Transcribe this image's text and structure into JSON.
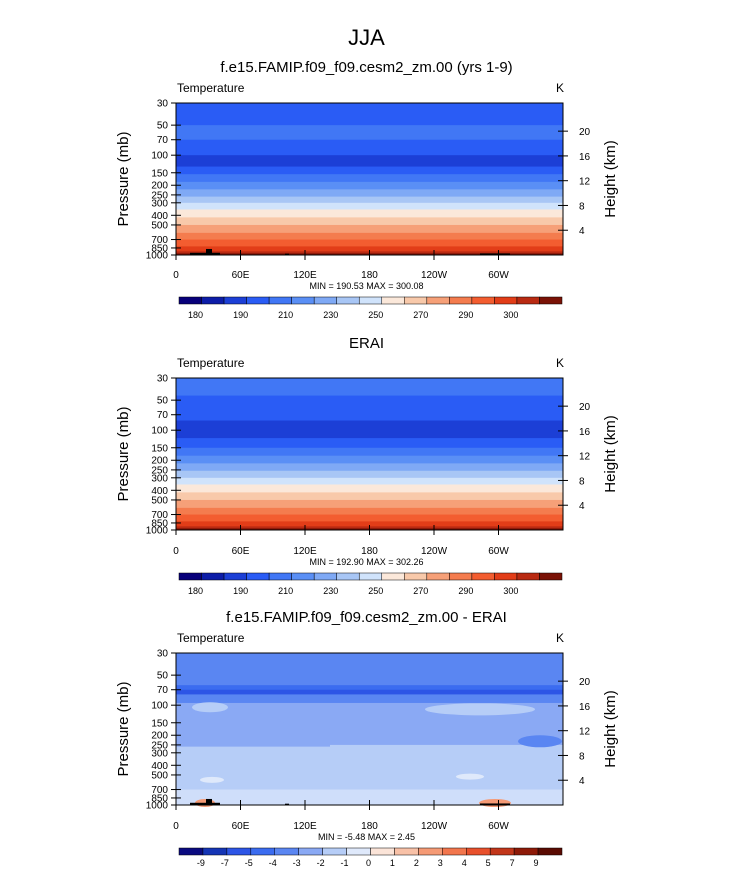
{
  "page_title": "JJA",
  "chart_data": [
    {
      "type": "heatmap",
      "title": "f.e15.FAMIP.f09_f09.cesm2_zm.00 (yrs 1-9)",
      "left_label": "Temperature",
      "units_label": "K",
      "xlabel": "",
      "ylabel": "Pressure (mb)",
      "y2label": "Height (km)",
      "x_ticks": [
        "0",
        "60E",
        "120E",
        "180",
        "120W",
        "60W"
      ],
      "y_ticks": [
        "30",
        "50",
        "70",
        "100",
        "150",
        "200",
        "250",
        "300",
        "400",
        "500",
        "700",
        "850",
        "1000"
      ],
      "y2_ticks": [
        "20",
        "16",
        "12",
        "8",
        "4"
      ],
      "minmax": "MIN = 190.53  MAX = 300.08",
      "colorbar_labels": [
        "180",
        "190",
        "210",
        "230",
        "250",
        "270",
        "290",
        "300"
      ],
      "bands": [
        {
          "p": 30,
          "level": 3
        },
        {
          "p": 50,
          "level": 4
        },
        {
          "p": 70,
          "level": 3
        },
        {
          "p": 100,
          "level": 2
        },
        {
          "p": 130,
          "level": 3
        },
        {
          "p": 155,
          "level": 4
        },
        {
          "p": 185,
          "level": 5
        },
        {
          "p": 220,
          "level": 6
        },
        {
          "p": 260,
          "level": 7
        },
        {
          "p": 300,
          "level": 8
        },
        {
          "p": 350,
          "level": 9
        },
        {
          "p": 420,
          "level": 10
        },
        {
          "p": 500,
          "level": 11
        },
        {
          "p": 600,
          "level": 12
        },
        {
          "p": 700,
          "level": 13
        },
        {
          "p": 820,
          "level": 14
        },
        {
          "p": 920,
          "level": 15
        }
      ],
      "topo_mask": true
    },
    {
      "type": "heatmap",
      "title": "ERAI",
      "left_label": "Temperature",
      "units_label": "K",
      "xlabel": "",
      "ylabel": "Pressure (mb)",
      "y2label": "Height (km)",
      "x_ticks": [
        "0",
        "60E",
        "120E",
        "180",
        "120W",
        "60W"
      ],
      "y_ticks": [
        "30",
        "50",
        "70",
        "100",
        "150",
        "200",
        "250",
        "300",
        "400",
        "500",
        "700",
        "850",
        "1000"
      ],
      "y2_ticks": [
        "20",
        "16",
        "12",
        "8",
        "4"
      ],
      "minmax": "MIN = 192.90  MAX = 302.26",
      "colorbar_labels": [
        "180",
        "190",
        "210",
        "230",
        "250",
        "270",
        "290",
        "300"
      ],
      "bands": [
        {
          "p": 30,
          "level": 4
        },
        {
          "p": 45,
          "level": 3
        },
        {
          "p": 80,
          "level": 2
        },
        {
          "p": 120,
          "level": 3
        },
        {
          "p": 150,
          "level": 4
        },
        {
          "p": 180,
          "level": 5
        },
        {
          "p": 215,
          "level": 6
        },
        {
          "p": 255,
          "level": 7
        },
        {
          "p": 300,
          "level": 8
        },
        {
          "p": 350,
          "level": 9
        },
        {
          "p": 420,
          "level": 10
        },
        {
          "p": 500,
          "level": 11
        },
        {
          "p": 600,
          "level": 12
        },
        {
          "p": 700,
          "level": 13
        },
        {
          "p": 820,
          "level": 14
        },
        {
          "p": 920,
          "level": 15
        }
      ],
      "topo_mask": false
    },
    {
      "type": "heatmap",
      "title": "f.e15.FAMIP.f09_f09.cesm2_zm.00 - ERAI",
      "left_label": "Temperature",
      "units_label": "K",
      "xlabel": "",
      "ylabel": "Pressure (mb)",
      "y2label": "Height (km)",
      "x_ticks": [
        "0",
        "60E",
        "120E",
        "180",
        "120W",
        "60W"
      ],
      "y_ticks": [
        "30",
        "50",
        "70",
        "100",
        "150",
        "200",
        "250",
        "300",
        "400",
        "500",
        "700",
        "850",
        "1000"
      ],
      "y2_ticks": [
        "20",
        "16",
        "12",
        "8",
        "4"
      ],
      "minmax": "MIN = -5.48  MAX =  2.45",
      "colorbar_labels": [
        "-9",
        "-7",
        "-5",
        "-4",
        "-3",
        "-2",
        "-1",
        "0",
        "1",
        "2",
        "3",
        "4",
        "5",
        "7",
        "9"
      ],
      "bands": [
        {
          "p": 30,
          "level": 4
        },
        {
          "p": 63,
          "level": 3
        },
        {
          "p": 70,
          "level": 2
        },
        {
          "p": 78,
          "level": 4
        },
        {
          "p": 95,
          "level": 5
        },
        {
          "p": 250,
          "level": 6
        }
      ],
      "topo_mask": true
    }
  ],
  "colors": {
    "palette": [
      "#08007a",
      "#0d1da8",
      "#1c3fd6",
      "#2a5cf5",
      "#4177f5",
      "#5a8ff5",
      "#7fa9f5",
      "#a8c6f5",
      "#d0e3fb",
      "#fbe8da",
      "#f8c9aa",
      "#f6a078",
      "#f47c4e",
      "#f35d30",
      "#e23d18",
      "#b92a12",
      "#7a1206"
    ],
    "diff_palette": [
      "#0a0a80",
      "#1535b5",
      "#2d55e6",
      "#3b6cf0",
      "#5a86f2",
      "#8aa9f4",
      "#b6cdf7",
      "#dfe9fb",
      "#fbe4d8",
      "#f8c1a7",
      "#f59a75",
      "#f2764d",
      "#e8502c",
      "#c2361a",
      "#8e1a08",
      "#5a0b02"
    ],
    "topo": "#000000"
  }
}
